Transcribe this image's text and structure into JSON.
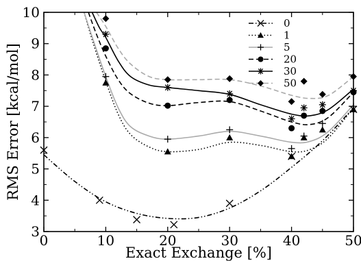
{
  "chart_data": {
    "type": "scatter",
    "title": "",
    "xlabel": "Exact Exchange [%]",
    "ylabel": "RMS Error [kcal/mol]",
    "xlim": [
      0,
      50
    ],
    "ylim": [
      3,
      10
    ],
    "xticks": [
      0,
      10,
      20,
      30,
      40,
      50
    ],
    "yticks": [
      3,
      4,
      5,
      6,
      7,
      8,
      9,
      10
    ],
    "grid": false,
    "legend_position": "top-right",
    "series": [
      {
        "name": "0",
        "marker": "x",
        "color": "#000000",
        "dash": "dashdotdot",
        "points": [
          [
            0,
            5.6
          ],
          [
            9,
            4.0
          ],
          [
            15,
            3.38
          ],
          [
            21,
            3.22
          ],
          [
            30,
            3.9
          ],
          [
            40,
            5.4
          ],
          [
            50,
            6.9
          ]
        ],
        "fit": [
          [
            0,
            5.45
          ],
          [
            5,
            4.6
          ],
          [
            10,
            3.95
          ],
          [
            15,
            3.58
          ],
          [
            20,
            3.42
          ],
          [
            25,
            3.45
          ],
          [
            30,
            3.75
          ],
          [
            35,
            4.3
          ],
          [
            40,
            5.05
          ],
          [
            45,
            5.9
          ],
          [
            50,
            6.95
          ]
        ]
      },
      {
        "name": "1",
        "marker": "triangle",
        "color": "#000000",
        "dash": "dotted",
        "points": [
          [
            10,
            7.75
          ],
          [
            20,
            5.55
          ],
          [
            30,
            6.0
          ],
          [
            40,
            5.4
          ],
          [
            42,
            6.0
          ],
          [
            45,
            6.25
          ],
          [
            50,
            6.9
          ]
        ],
        "fit": [
          [
            6.5,
            10.0
          ],
          [
            8,
            9.0
          ],
          [
            10,
            7.8
          ],
          [
            12,
            6.75
          ],
          [
            14,
            6.1
          ],
          [
            17,
            5.7
          ],
          [
            20,
            5.55
          ],
          [
            25,
            5.62
          ],
          [
            30,
            5.85
          ],
          [
            35,
            5.75
          ],
          [
            40,
            5.55
          ],
          [
            43,
            5.62
          ],
          [
            46,
            6.0
          ],
          [
            50,
            6.95
          ]
        ]
      },
      {
        "name": "5",
        "marker": "plus",
        "color": "#000000",
        "line_color": "#aaaaaa",
        "dash": "solid",
        "points": [
          [
            10,
            7.95
          ],
          [
            20,
            5.95
          ],
          [
            30,
            6.25
          ],
          [
            40,
            5.65
          ],
          [
            42,
            6.05
          ],
          [
            45,
            6.45
          ],
          [
            50,
            7.0
          ]
        ],
        "fit": [
          [
            6.5,
            10.0
          ],
          [
            8,
            9.1
          ],
          [
            10,
            7.95
          ],
          [
            12,
            6.95
          ],
          [
            14,
            6.35
          ],
          [
            17,
            6.05
          ],
          [
            20,
            5.95
          ],
          [
            25,
            6.05
          ],
          [
            30,
            6.2
          ],
          [
            35,
            6.05
          ],
          [
            40,
            5.85
          ],
          [
            43,
            5.88
          ],
          [
            46,
            6.2
          ],
          [
            50,
            7.05
          ]
        ]
      },
      {
        "name": "20",
        "marker": "circle",
        "color": "#000000",
        "dash": "dashed",
        "points": [
          [
            10,
            8.85
          ],
          [
            20,
            7.02
          ],
          [
            30,
            7.2
          ],
          [
            40,
            6.3
          ],
          [
            42,
            6.7
          ],
          [
            45,
            6.85
          ],
          [
            50,
            7.45
          ]
        ],
        "fit": [
          [
            7.2,
            10.0
          ],
          [
            8.5,
            9.3
          ],
          [
            10,
            8.6
          ],
          [
            12,
            7.85
          ],
          [
            14,
            7.4
          ],
          [
            17,
            7.1
          ],
          [
            20,
            7.02
          ],
          [
            25,
            7.12
          ],
          [
            30,
            7.15
          ],
          [
            35,
            6.85
          ],
          [
            40,
            6.5
          ],
          [
            43,
            6.42
          ],
          [
            46,
            6.65
          ],
          [
            50,
            7.45
          ]
        ]
      },
      {
        "name": "30",
        "marker": "asterisk",
        "color": "#000000",
        "dash": "solid",
        "points": [
          [
            10,
            9.3
          ],
          [
            20,
            7.6
          ],
          [
            30,
            7.4
          ],
          [
            40,
            6.6
          ],
          [
            42,
            6.95
          ],
          [
            45,
            7.05
          ],
          [
            50,
            7.5
          ]
        ],
        "fit": [
          [
            7.8,
            10.0
          ],
          [
            9,
            9.5
          ],
          [
            10,
            9.2
          ],
          [
            12,
            8.45
          ],
          [
            14,
            7.95
          ],
          [
            17,
            7.68
          ],
          [
            20,
            7.6
          ],
          [
            25,
            7.5
          ],
          [
            30,
            7.38
          ],
          [
            35,
            7.05
          ],
          [
            40,
            6.75
          ],
          [
            43,
            6.7
          ],
          [
            46,
            6.9
          ],
          [
            50,
            7.55
          ]
        ]
      },
      {
        "name": "50",
        "marker": "diamond",
        "color": "#000000",
        "line_color": "#aaaaaa",
        "dash": "dashed",
        "points": [
          [
            10,
            9.8
          ],
          [
            20,
            7.85
          ],
          [
            30,
            7.88
          ],
          [
            40,
            7.15
          ],
          [
            42,
            7.8
          ],
          [
            45,
            7.38
          ],
          [
            50,
            7.95
          ]
        ],
        "fit": [
          [
            8.5,
            10.0
          ],
          [
            10,
            9.55
          ],
          [
            12,
            8.85
          ],
          [
            14,
            8.35
          ],
          [
            17,
            7.95
          ],
          [
            20,
            7.85
          ],
          [
            25,
            7.85
          ],
          [
            30,
            7.85
          ],
          [
            35,
            7.65
          ],
          [
            40,
            7.35
          ],
          [
            43,
            7.25
          ],
          [
            46,
            7.35
          ],
          [
            50,
            7.95
          ]
        ]
      }
    ]
  }
}
